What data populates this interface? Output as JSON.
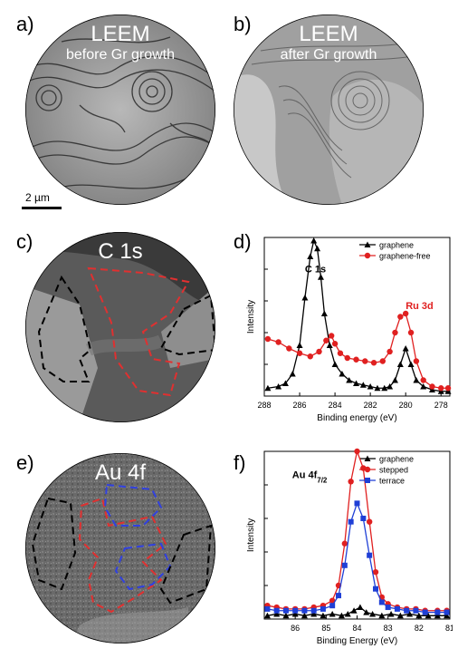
{
  "panels": {
    "a": {
      "label": "a)",
      "title": "LEEM",
      "subtitle": "before Gr growth",
      "scalebar": "2 µm"
    },
    "b": {
      "label": "b)",
      "title": "LEEM",
      "subtitle": "after Gr growth"
    },
    "c": {
      "label": "c)",
      "title": "C 1s"
    },
    "d": {
      "label": "d)"
    },
    "e": {
      "label": "e)",
      "title": "Au 4f"
    },
    "f": {
      "label": "f)"
    }
  },
  "colors": {
    "graphene": "#000000",
    "graphene_free": "#e02020",
    "stepped": "#e02020",
    "terrace": "#1f3fd6",
    "region_black": "#000000",
    "region_red": "#e03030",
    "region_blue": "#3040e0"
  },
  "chart_data": [
    {
      "type": "line",
      "panel": "d",
      "xlabel": "Binding energy (eV)",
      "ylabel": "Intensity",
      "xlim": [
        288,
        277.5
      ],
      "ylim": [
        0,
        1
      ],
      "x_ticks": [
        "288",
        "286",
        "284",
        "282",
        "280",
        "278"
      ],
      "annotations": [
        {
          "text": "C 1s",
          "x": 285.7,
          "y": 0.78,
          "color": "#000000"
        },
        {
          "text": "Ru 3d",
          "x": 280.0,
          "y": 0.55,
          "color": "#e02020"
        }
      ],
      "legend_position": "top-right",
      "series": [
        {
          "name": "graphene",
          "color": "#000000",
          "marker": "triangle",
          "x": [
            287.8,
            287.2,
            286.8,
            286.4,
            286.0,
            285.7,
            285.4,
            285.2,
            285.0,
            284.8,
            284.6,
            284.3,
            284.0,
            283.6,
            283.2,
            282.8,
            282.4,
            282.0,
            281.6,
            281.2,
            280.9,
            280.6,
            280.3,
            280.0,
            279.7,
            279.4,
            279.0,
            278.5,
            278.0,
            277.6
          ],
          "y": [
            0.05,
            0.06,
            0.08,
            0.14,
            0.32,
            0.62,
            0.88,
            0.98,
            0.93,
            0.75,
            0.52,
            0.32,
            0.2,
            0.14,
            0.1,
            0.08,
            0.07,
            0.06,
            0.05,
            0.05,
            0.06,
            0.1,
            0.2,
            0.3,
            0.2,
            0.1,
            0.06,
            0.04,
            0.03,
            0.03
          ]
        },
        {
          "name": "graphene-free",
          "color": "#e02020",
          "marker": "circle",
          "x": [
            287.8,
            287.2,
            286.6,
            286.0,
            285.4,
            284.9,
            284.5,
            284.2,
            284.0,
            283.7,
            283.3,
            282.8,
            282.3,
            281.8,
            281.3,
            280.9,
            280.6,
            280.3,
            280.0,
            279.7,
            279.4,
            279.0,
            278.5,
            278.0,
            277.6
          ],
          "y": [
            0.36,
            0.34,
            0.3,
            0.27,
            0.25,
            0.28,
            0.35,
            0.38,
            0.33,
            0.27,
            0.24,
            0.23,
            0.22,
            0.21,
            0.22,
            0.28,
            0.4,
            0.5,
            0.52,
            0.4,
            0.22,
            0.1,
            0.06,
            0.05,
            0.05
          ]
        }
      ]
    },
    {
      "type": "line",
      "panel": "f",
      "xlabel": "Binding Energy (eV)",
      "ylabel": "Intensity",
      "xlim": [
        87,
        81
      ],
      "ylim": [
        0,
        1
      ],
      "x_ticks": [
        "86",
        "85",
        "84",
        "83",
        "82",
        "81"
      ],
      "annotation": {
        "text": "Au 4f",
        "subscript": "7/2",
        "x": 86.1,
        "y": 0.84
      },
      "legend_position": "top-right",
      "series": [
        {
          "name": "graphene",
          "color": "#000000",
          "marker": "triangle",
          "x": [
            86.9,
            86.6,
            86.3,
            86.0,
            85.7,
            85.4,
            85.1,
            84.8,
            84.5,
            84.3,
            84.1,
            83.9,
            83.7,
            83.5,
            83.2,
            82.9,
            82.6,
            82.3,
            82.0,
            81.7,
            81.4,
            81.1
          ],
          "y": [
            0.02,
            0.03,
            0.02,
            0.03,
            0.02,
            0.03,
            0.02,
            0.03,
            0.02,
            0.03,
            0.05,
            0.07,
            0.04,
            0.03,
            0.02,
            0.03,
            0.02,
            0.03,
            0.02,
            0.02,
            0.02,
            0.02
          ]
        },
        {
          "name": "stepped",
          "color": "#e02020",
          "marker": "circle",
          "x": [
            86.9,
            86.6,
            86.3,
            86.0,
            85.7,
            85.4,
            85.1,
            84.8,
            84.6,
            84.4,
            84.2,
            84.0,
            83.8,
            83.6,
            83.4,
            83.2,
            83.0,
            82.7,
            82.4,
            82.1,
            81.8,
            81.4,
            81.1
          ],
          "y": [
            0.08,
            0.07,
            0.06,
            0.06,
            0.06,
            0.07,
            0.08,
            0.11,
            0.2,
            0.45,
            0.82,
            1.0,
            0.9,
            0.58,
            0.28,
            0.13,
            0.09,
            0.07,
            0.06,
            0.06,
            0.05,
            0.05,
            0.05
          ]
        },
        {
          "name": "terrace",
          "color": "#1f3fd6",
          "marker": "square",
          "x": [
            86.9,
            86.6,
            86.3,
            86.0,
            85.7,
            85.4,
            85.1,
            84.8,
            84.6,
            84.4,
            84.2,
            84.0,
            83.8,
            83.6,
            83.4,
            83.2,
            83.0,
            82.7,
            82.4,
            82.1,
            81.8,
            81.4,
            81.1
          ],
          "y": [
            0.06,
            0.05,
            0.05,
            0.05,
            0.05,
            0.05,
            0.06,
            0.08,
            0.14,
            0.32,
            0.58,
            0.69,
            0.6,
            0.38,
            0.18,
            0.1,
            0.07,
            0.06,
            0.05,
            0.05,
            0.04,
            0.04,
            0.04
          ]
        }
      ]
    }
  ]
}
